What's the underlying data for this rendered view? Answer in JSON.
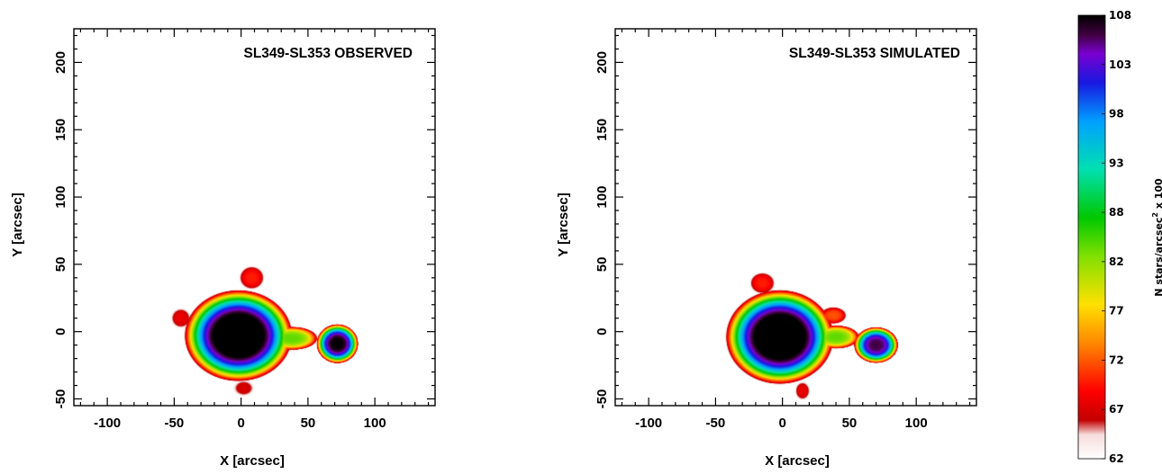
{
  "chart_data": [
    {
      "type": "heatmap",
      "title": "SL349-SL353 OBSERVED",
      "xlabel": "X [arcsec]",
      "ylabel": "Y [arcsec]",
      "xlim": [
        -125,
        145
      ],
      "ylim": [
        -55,
        225
      ],
      "xticks": [
        -100,
        -50,
        0,
        50,
        100
      ],
      "yticks": [
        -50,
        0,
        50,
        100,
        150,
        200
      ],
      "grid": false,
      "blobs": [
        {
          "x": -2,
          "y": -3,
          "rx": 38,
          "ry": 32,
          "peak": 112
        },
        {
          "x": 72,
          "y": -9,
          "rx": 15,
          "ry": 14,
          "peak": 108
        },
        {
          "x": 38,
          "y": -5,
          "rx": 22,
          "ry": 10,
          "peak": 84
        },
        {
          "x": 8,
          "y": 40,
          "rx": 14,
          "ry": 13,
          "peak": 70
        },
        {
          "x": 2,
          "y": -42,
          "rx": 13,
          "ry": 10,
          "peak": 67
        },
        {
          "x": -45,
          "y": 10,
          "rx": 12,
          "ry": 12,
          "peak": 68
        }
      ]
    },
    {
      "type": "heatmap",
      "title": "SL349-SL353 SIMULATED",
      "xlabel": "X [arcsec]",
      "ylabel": "Y [arcsec]",
      "xlim": [
        -125,
        145
      ],
      "ylim": [
        -55,
        225
      ],
      "xticks": [
        -100,
        -50,
        0,
        50,
        100
      ],
      "yticks": [
        -50,
        0,
        50,
        100,
        150,
        200
      ],
      "grid": false,
      "blobs": [
        {
          "x": -2,
          "y": -4,
          "rx": 38,
          "ry": 33,
          "peak": 112
        },
        {
          "x": 70,
          "y": -10,
          "rx": 16,
          "ry": 13,
          "peak": 106
        },
        {
          "x": 40,
          "y": -4,
          "rx": 20,
          "ry": 10,
          "peak": 84
        },
        {
          "x": 15,
          "y": -44,
          "rx": 9,
          "ry": 11,
          "peak": 68
        },
        {
          "x": -15,
          "y": 36,
          "rx": 14,
          "ry": 12,
          "peak": 70
        },
        {
          "x": 38,
          "y": 12,
          "rx": 14,
          "ry": 9,
          "peak": 72
        }
      ]
    }
  ],
  "colorbar": {
    "label_main": "N stars/arcsec",
    "label_sup": "2",
    "label_tail": " x 100",
    "ticks": [
      "108",
      "103",
      "98",
      "93",
      "88",
      "82",
      "77",
      "72",
      "67",
      "62"
    ],
    "vmin": 62,
    "vmax": 108,
    "stops": [
      {
        "v": 62,
        "color": "#ffffff"
      },
      {
        "v": 64.5,
        "color": "#f7dcdc"
      },
      {
        "v": 66,
        "color": "#c30000"
      },
      {
        "v": 69,
        "color": "#ff0000"
      },
      {
        "v": 74,
        "color": "#ff8800"
      },
      {
        "v": 78,
        "color": "#ffe000"
      },
      {
        "v": 83,
        "color": "#80e000"
      },
      {
        "v": 87,
        "color": "#00c800"
      },
      {
        "v": 92,
        "color": "#00e0b0"
      },
      {
        "v": 97,
        "color": "#00a0ff"
      },
      {
        "v": 101,
        "color": "#1818e0"
      },
      {
        "v": 104,
        "color": "#7a00d0"
      },
      {
        "v": 106,
        "color": "#400040"
      },
      {
        "v": 108,
        "color": "#000000"
      }
    ]
  }
}
